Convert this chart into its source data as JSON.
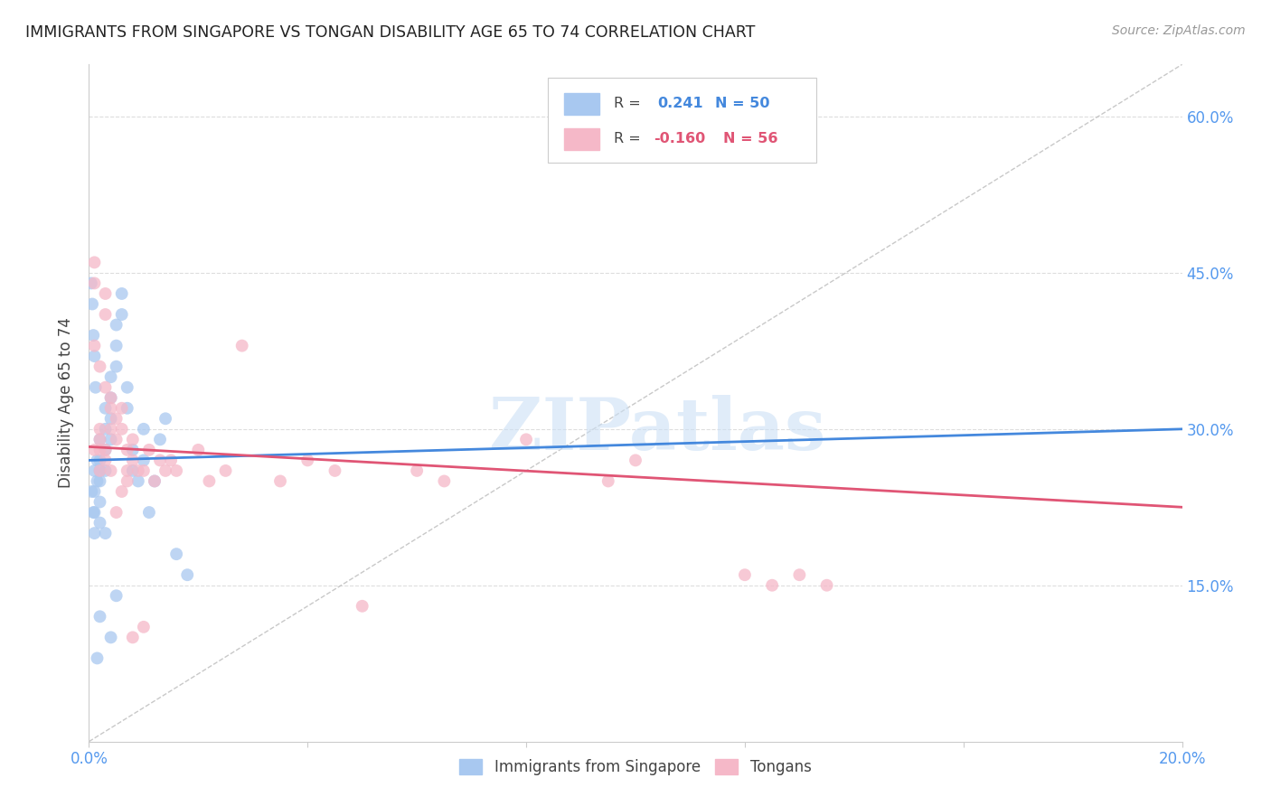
{
  "title": "IMMIGRANTS FROM SINGAPORE VS TONGAN DISABILITY AGE 65 TO 74 CORRELATION CHART",
  "source": "Source: ZipAtlas.com",
  "ylabel": "Disability Age 65 to 74",
  "xlim": [
    0.0,
    0.2
  ],
  "ylim": [
    0.0,
    0.65
  ],
  "ytick_vals": [
    0.15,
    0.3,
    0.45,
    0.6
  ],
  "ytick_labels": [
    "15.0%",
    "30.0%",
    "45.0%",
    "60.0%"
  ],
  "blue_R": 0.241,
  "blue_N": 50,
  "pink_R": -0.16,
  "pink_N": 56,
  "blue_color": "#a8c8f0",
  "pink_color": "#f5b8c8",
  "blue_line_color": "#4488dd",
  "pink_line_color": "#e05575",
  "ref_line_color": "#bbbbbb",
  "title_color": "#222222",
  "tick_color": "#5599ee",
  "background_color": "#ffffff",
  "grid_color": "#dddddd",
  "blue_trend_x": [
    0.0,
    0.2
  ],
  "blue_trend_y": [
    0.27,
    0.3
  ],
  "pink_trend_x": [
    0.0,
    0.2
  ],
  "pink_trend_y": [
    0.283,
    0.225
  ],
  "watermark_text": "ZIPatlas",
  "watermark_color": "#cce0f5",
  "legend_label_blue": "Immigrants from Singapore",
  "legend_label_pink": "Tongans"
}
